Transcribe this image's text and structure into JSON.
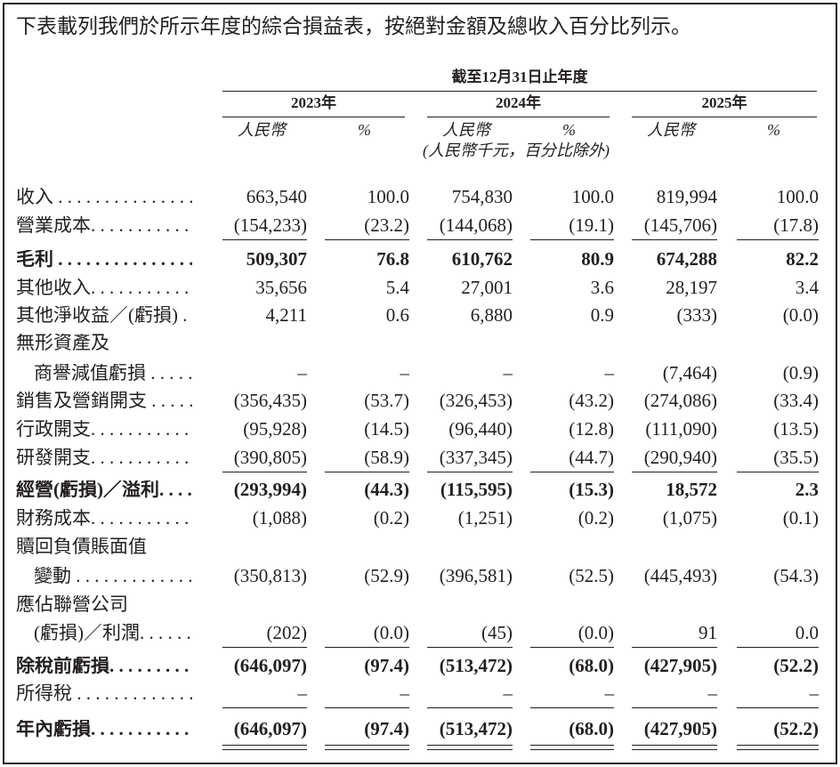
{
  "intro": "下表載列我們於所示年度的綜合損益表，按絕對金額及總收入百分比列示。",
  "table": {
    "period_header": "截至12月31日止年度",
    "years": [
      "2023年",
      "2024年",
      "2025年"
    ],
    "currency_label": "人民幣",
    "percent_label": "%",
    "unit_note": "(人民幣千元，百分比除外)",
    "rows": [
      {
        "label": "收入 . . . . . . . . . . . . . . . . . .",
        "values": [
          "663,540",
          "100.0",
          "754,830",
          "100.0",
          "819,994",
          "100.0"
        ]
      },
      {
        "label": "營業成本. . . . . . . . . . . . . . .",
        "values": [
          "(154,233)",
          "(23.2)",
          "(144,068)",
          "(19.1)",
          "(145,706)",
          "(17.8)"
        ]
      },
      {
        "label": "毛利 . . . . . . . . . . . . . . . . . .",
        "values": [
          "509,307",
          "76.8",
          "610,762",
          "80.9",
          "674,288",
          "82.2"
        ]
      },
      {
        "label": "其他收入. . . . . . . . . . . . . . .",
        "values": [
          "35,656",
          "5.4",
          "27,001",
          "3.6",
          "28,197",
          "3.4"
        ]
      },
      {
        "label": "其他淨收益／(虧損) .",
        "values": [
          "4,211",
          "0.6",
          "6,880",
          "0.9",
          "(333)",
          "(0.0)"
        ]
      },
      {
        "label": "無形資產及"
      },
      {
        "label": "商譽減值虧損 . . . . . . .",
        "values": [
          "–",
          "–",
          "–",
          "–",
          "(7,464)",
          "(0.9)"
        ]
      },
      {
        "label": "銷售及營銷開支 . . . . . . . .",
        "values": [
          "(356,435)",
          "(53.7)",
          "(326,453)",
          "(43.2)",
          "(274,086)",
          "(33.4)"
        ]
      },
      {
        "label": "行政開支. . . . . . . . . . . . . . .",
        "values": [
          "(95,928)",
          "(14.5)",
          "(96,440)",
          "(12.8)",
          "(111,090)",
          "(13.5)"
        ]
      },
      {
        "label": "研發開支. . . . . . . . . . . . . . .",
        "values": [
          "(390,805)",
          "(58.9)",
          "(337,345)",
          "(44.7)",
          "(290,940)",
          "(35.5)"
        ]
      },
      {
        "label": "經營(虧損)／溢利. . . . .",
        "values": [
          "(293,994)",
          "(44.3)",
          "(115,595)",
          "(15.3)",
          "18,572",
          "2.3"
        ]
      },
      {
        "label": "財務成本. . . . . . . . . . . . . . .",
        "values": [
          "(1,088)",
          "(0.2)",
          "(1,251)",
          "(0.2)",
          "(1,075)",
          "(0.1)"
        ]
      },
      {
        "label": "贖回負債賬面值"
      },
      {
        "label": "變動 . . . . . . . . . . . . . . .",
        "values": [
          "(350,813)",
          "(52.9)",
          "(396,581)",
          "(52.5)",
          "(445,493)",
          "(54.3)"
        ]
      },
      {
        "label": "應佔聯營公司"
      },
      {
        "label": "(虧損)／利潤. . . . . . .",
        "values": [
          "(202)",
          "(0.0)",
          "(45)",
          "(0.0)",
          "91",
          "0.0"
        ]
      },
      {
        "label": "除稅前虧損. . . . . . . . . . . .",
        "values": [
          "(646,097)",
          "(97.4)",
          "(513,472)",
          "(68.0)",
          "(427,905)",
          "(52.2)"
        ]
      },
      {
        "label": "所得稅 . . . . . . . . . . . . . . .",
        "values": [
          "–",
          "–",
          "–",
          "–",
          "–",
          "–"
        ]
      },
      {
        "label": "年內虧損. . . . . . . . . . . . . . .",
        "values": [
          "(646,097)",
          "(97.4)",
          "(513,472)",
          "(68.0)",
          "(427,905)",
          "(52.2)"
        ]
      }
    ]
  }
}
